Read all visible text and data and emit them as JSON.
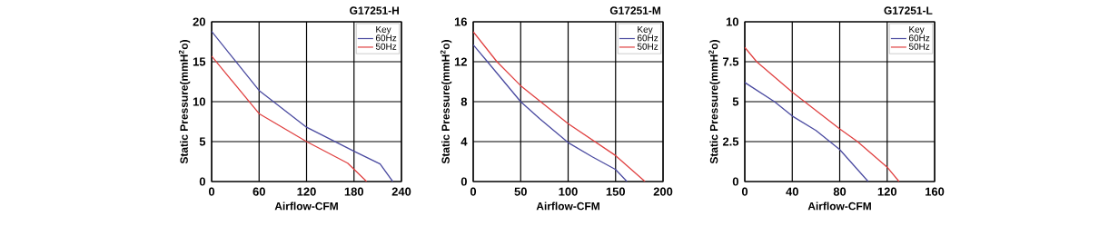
{
  "chart_data": [
    {
      "type": "line",
      "title": "G17251-H",
      "xlabel": "Airflow-CFM",
      "ylabel": "Static Pressure(mmH$^{2}$o)",
      "legend_title": "Key",
      "legend": "top right",
      "grid": true,
      "xlim": [
        0,
        240
      ],
      "ylim": [
        0,
        20
      ],
      "xticks": [
        0,
        60,
        120,
        180,
        240
      ],
      "yticks": [
        0,
        5,
        10,
        15,
        20
      ],
      "series": [
        {
          "name": "60Hz",
          "color": "#4a4aa0",
          "x": [
            0,
            60,
            120,
            180,
            213,
            229
          ],
          "values": [
            18.8,
            11.4,
            6.8,
            3.8,
            2.2,
            0
          ]
        },
        {
          "name": "50Hz",
          "color": "#e04040",
          "x": [
            0,
            60,
            120,
            172,
            196
          ],
          "values": [
            15.7,
            8.5,
            5,
            2.3,
            0
          ]
        }
      ]
    },
    {
      "type": "line",
      "title": "G17251-M",
      "xlabel": "Airflow-CFM",
      "ylabel": "Static Pressure(mmH$^{2}$o)",
      "legend_title": "Key",
      "legend": "top right",
      "grid": true,
      "xlim": [
        0,
        200
      ],
      "ylim": [
        0,
        16
      ],
      "xticks": [
        0,
        50,
        100,
        150,
        200
      ],
      "yticks": [
        0,
        4,
        8,
        12,
        16
      ],
      "series": [
        {
          "name": "60Hz",
          "color": "#4a4aa0",
          "x": [
            0,
            15,
            50,
            70,
            100,
            125,
            150,
            162
          ],
          "values": [
            13.7,
            12,
            8,
            6.3,
            3.9,
            2.5,
            1.2,
            0
          ]
        },
        {
          "name": "50Hz",
          "color": "#e04040",
          "x": [
            0,
            25,
            50,
            100,
            150,
            181
          ],
          "values": [
            15,
            12,
            9.6,
            5.8,
            2.6,
            0
          ]
        }
      ]
    },
    {
      "type": "line",
      "title": "G17251-L",
      "xlabel": "Airflow-CFM",
      "ylabel": "Static Pressure(mmH$^{2}$o)",
      "legend_title": "Key",
      "legend": "top right",
      "grid": true,
      "xlim": [
        0,
        160
      ],
      "ylim": [
        0,
        10
      ],
      "xticks": [
        0,
        40,
        80,
        120,
        160
      ],
      "yticks": [
        0,
        2.5,
        5,
        7.5,
        10
      ],
      "series": [
        {
          "name": "60Hz",
          "color": "#4a4aa0",
          "x": [
            0,
            25,
            40,
            60,
            80,
            104
          ],
          "values": [
            6.2,
            5,
            4.1,
            3.2,
            2,
            0
          ]
        },
        {
          "name": "50Hz",
          "color": "#e04040",
          "x": [
            0,
            10,
            40,
            80,
            95,
            120,
            130
          ],
          "values": [
            8.4,
            7.5,
            5.6,
            3.3,
            2.5,
            0.9,
            0
          ]
        }
      ]
    }
  ]
}
